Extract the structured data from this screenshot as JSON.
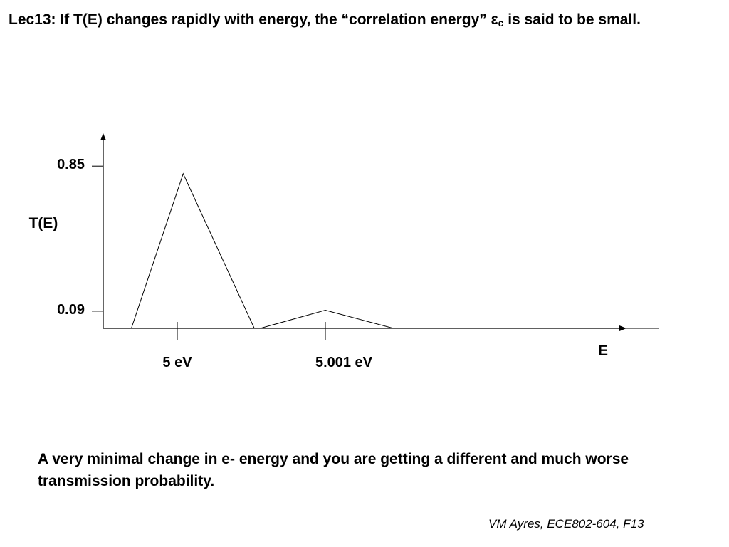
{
  "slide": {
    "title_prefix": "Lec13: If T(E) changes rapidly with energy, the “correlation energy” ",
    "title_symbol": "ε",
    "title_subscript": "c",
    "title_suffix": " is said to be small.",
    "caption": "A very minimal change in e- energy and you are getting a different and much worse transmission probability.",
    "footer": "VM Ayres, ECE802-604, F13"
  },
  "chart_data": {
    "type": "line",
    "title": "",
    "xlabel": "E",
    "ylabel": "T(E)",
    "y_ticks": [
      {
        "value": 0.85,
        "label": "0.85"
      },
      {
        "value": 0.09,
        "label": "0.09"
      }
    ],
    "x_ticks": [
      {
        "value": 5.0,
        "label": "5 eV"
      },
      {
        "value": 5.001,
        "label": "5.001 eV"
      }
    ],
    "ylim": [
      0,
      1.0
    ],
    "xlim": [
      4.9995,
      5.003
    ],
    "grid": false,
    "series": [
      {
        "points": [
          [
            4.9995,
            0
          ],
          [
            4.99969,
            0
          ],
          [
            5.00004,
            0.81
          ],
          [
            5.00052,
            0
          ],
          [
            5.00056,
            0
          ],
          [
            5.001,
            0.095
          ],
          [
            5.00146,
            0
          ],
          [
            5.00325,
            0
          ]
        ]
      }
    ],
    "colors": {
      "axis": "#000000",
      "line": "#000000"
    }
  }
}
